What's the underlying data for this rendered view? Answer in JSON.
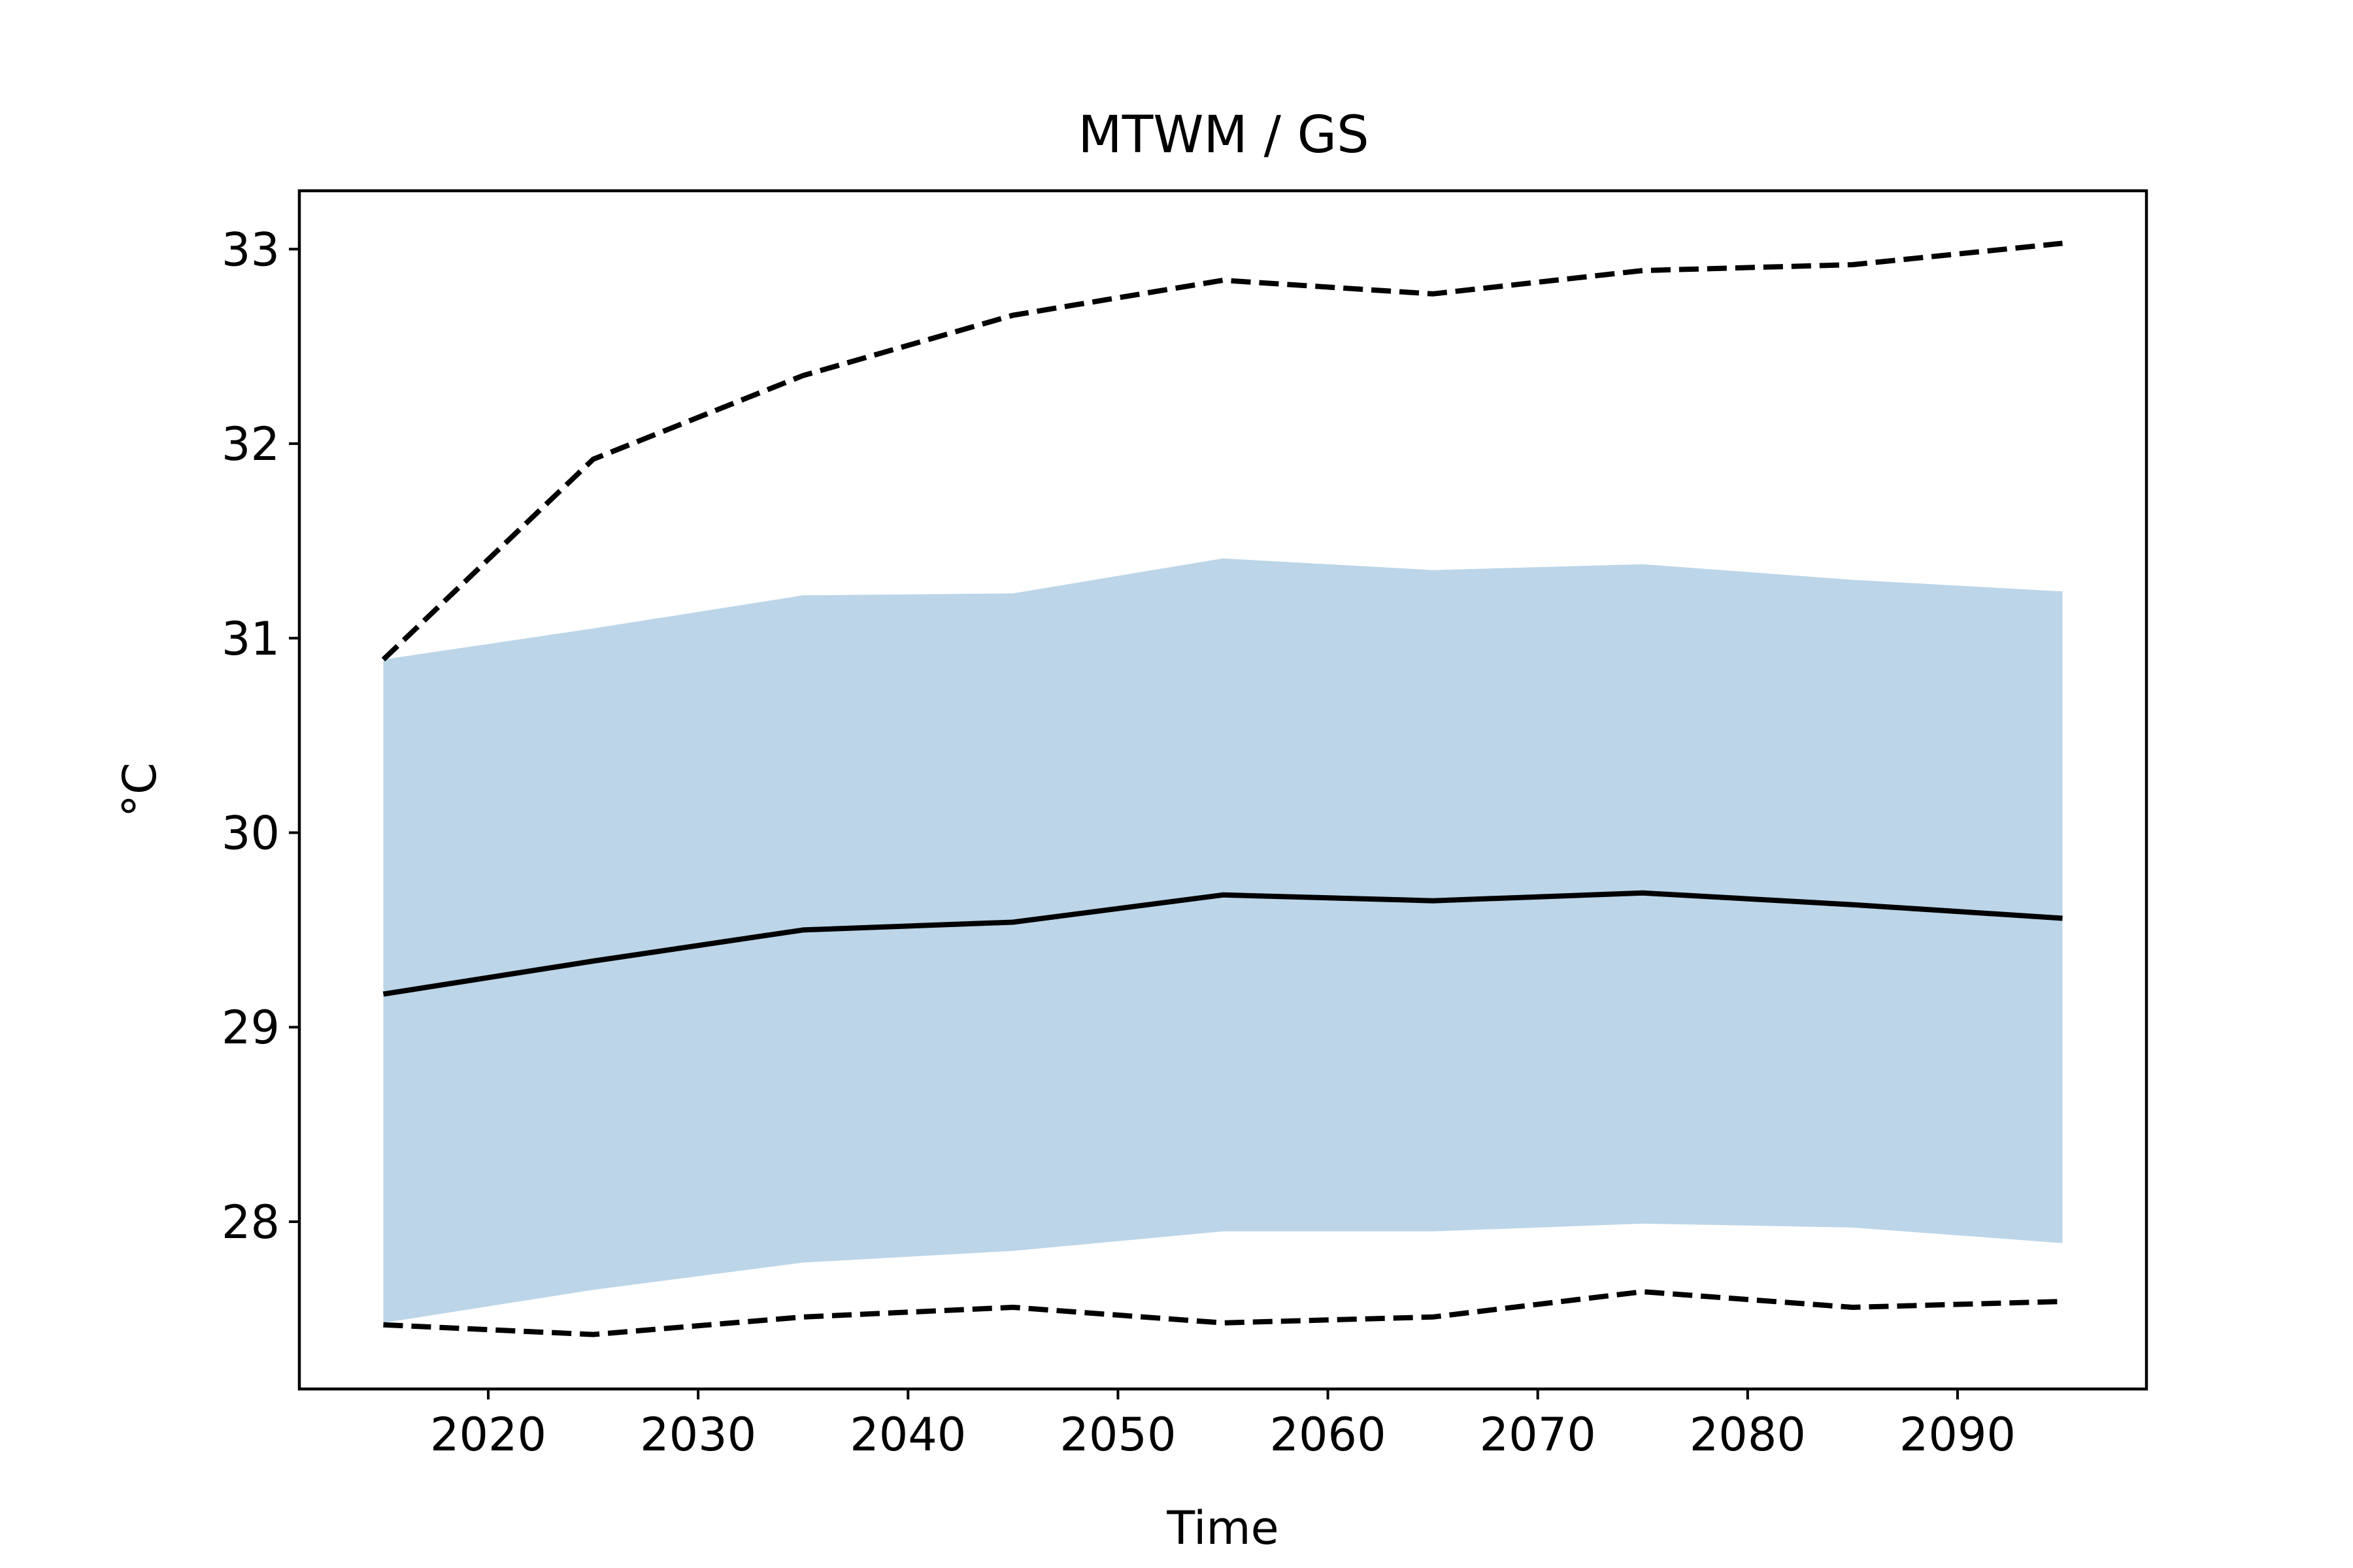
{
  "chart_data": {
    "type": "line",
    "title": "MTWM / GS",
    "xlabel": "Time",
    "ylabel": "°C",
    "x": [
      2015,
      2025,
      2035,
      2045,
      2055,
      2065,
      2075,
      2085,
      2095
    ],
    "xlim": [
      2011,
      2099
    ],
    "ylim": [
      27.14,
      33.3
    ],
    "xticks": [
      2020,
      2030,
      2040,
      2050,
      2060,
      2070,
      2080,
      2090
    ],
    "yticks": [
      28,
      29,
      30,
      31,
      32,
      33
    ],
    "grid": false,
    "band": {
      "color": "#bcd5e8",
      "lower": [
        27.48,
        27.65,
        27.79,
        27.85,
        27.95,
        27.95,
        27.99,
        27.97,
        27.89
      ],
      "upper": [
        30.89,
        31.05,
        31.22,
        31.23,
        31.41,
        31.35,
        31.38,
        31.3,
        31.24
      ]
    },
    "series": [
      {
        "style": "solid",
        "color": "#000000",
        "values": [
          29.17,
          29.34,
          29.5,
          29.54,
          29.68,
          29.65,
          29.69,
          29.63,
          29.56
        ]
      },
      {
        "style": "dashed",
        "color": "#000000",
        "values": [
          30.89,
          31.92,
          32.35,
          32.66,
          32.84,
          32.77,
          32.89,
          32.92,
          33.03
        ]
      },
      {
        "style": "dashed",
        "color": "#000000",
        "values": [
          27.47,
          27.42,
          27.51,
          27.56,
          27.48,
          27.51,
          27.64,
          27.56,
          27.59
        ]
      }
    ]
  }
}
